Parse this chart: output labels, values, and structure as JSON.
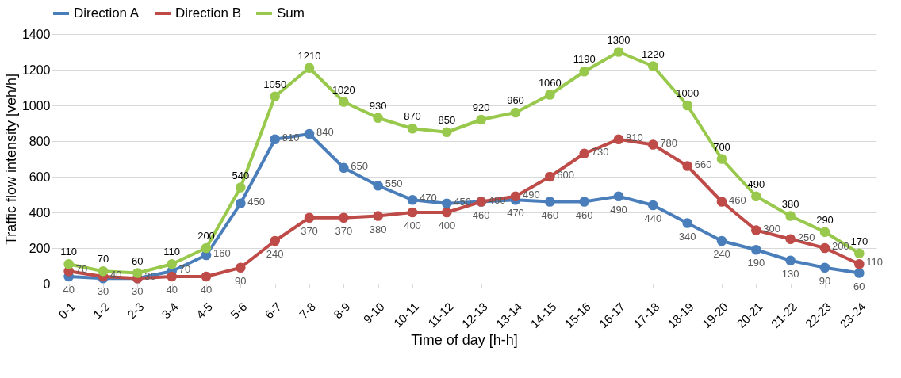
{
  "chart_data": {
    "type": "line",
    "xlabel": "Time of day [h-h]",
    "ylabel": "Traffic flow intensity [veh/h]",
    "categories": [
      "0-1",
      "1-2",
      "2-3",
      "3-4",
      "4-5",
      "5-6",
      "6-7",
      "7-8",
      "8-9",
      "9-10",
      "10-11",
      "11-12",
      "12-13",
      "13-14",
      "14-15",
      "15-16",
      "16-17",
      "17-18",
      "18-19",
      "19-20",
      "20-21",
      "21-22",
      "22-23",
      "23-24"
    ],
    "series": [
      {
        "name": "Direction A",
        "color": "#4a7ebb",
        "values": [
          40,
          30,
          30,
          70,
          160,
          450,
          810,
          840,
          650,
          550,
          470,
          450,
          460,
          470,
          460,
          460,
          490,
          440,
          340,
          240,
          190,
          130,
          90,
          60
        ]
      },
      {
        "name": "Direction B",
        "color": "#be4b48",
        "values": [
          70,
          40,
          30,
          40,
          40,
          90,
          240,
          370,
          370,
          380,
          400,
          400,
          460,
          490,
          600,
          730,
          810,
          780,
          660,
          460,
          300,
          250,
          200,
          110
        ]
      },
      {
        "name": "Sum",
        "color": "#98c84c",
        "values": [
          110,
          70,
          60,
          110,
          200,
          540,
          1050,
          1210,
          1020,
          930,
          870,
          850,
          920,
          960,
          1060,
          1190,
          1300,
          1220,
          1000,
          700,
          490,
          380,
          290,
          170
        ]
      }
    ],
    "ylim": [
      0,
      1400
    ],
    "yticks": [
      0,
      200,
      400,
      600,
      800,
      1000,
      1200,
      1400
    ],
    "grid": "y",
    "legend": "top",
    "marker": "circle",
    "line_style": "solid",
    "data_labels": true
  }
}
